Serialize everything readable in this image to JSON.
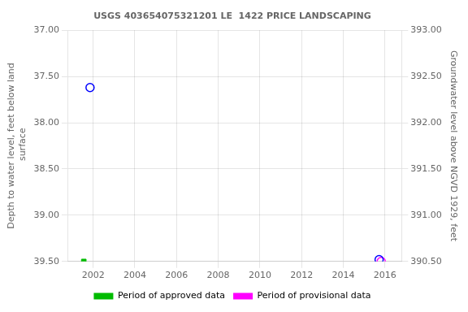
{
  "chart_data": {
    "type": "scatter",
    "title": "USGS 403654075321201 LE  1422 PRICE LANDSCAPING",
    "ylabel": "Depth to water level, feet below land\n surface",
    "y2label": "Groundwater level above NGVD 1929, feet",
    "xlim": [
      2000.8,
      2016.8
    ],
    "xticks": [
      2002,
      2004,
      2006,
      2008,
      2010,
      2012,
      2014,
      2016
    ],
    "ylim": [
      39.5,
      37.0
    ],
    "yticks": [
      {
        "value": 37.0,
        "label": "37.00"
      },
      {
        "value": 37.5,
        "label": "37.50"
      },
      {
        "value": 38.0,
        "label": "38.00"
      },
      {
        "value": 38.5,
        "label": "38.50"
      },
      {
        "value": 39.0,
        "label": "39.00"
      },
      {
        "value": 39.5,
        "label": "39.50"
      }
    ],
    "y2lim": [
      390.5,
      393.0
    ],
    "y2ticks": [
      {
        "value": 390.5,
        "label": "390.50"
      },
      {
        "value": 391.0,
        "label": "391.00"
      },
      {
        "value": 391.5,
        "label": "391.50"
      },
      {
        "value": 392.0,
        "label": "392.00"
      },
      {
        "value": 392.5,
        "label": "392.50"
      },
      {
        "value": 393.0,
        "label": "393.00"
      }
    ],
    "grid": true,
    "legend": "bottom",
    "legend_entries": [
      {
        "name": "Period of approved data",
        "color": "#00bb00"
      },
      {
        "name": "Period of provisional data",
        "color": "#ff00ff"
      }
    ],
    "series": [
      {
        "color": "#00bb00",
        "marker": "square",
        "x": [
          2001.55
        ],
        "values": [
          39.5
        ]
      },
      {
        "color": "#0000ff",
        "marker": "circle-open",
        "x": [
          2001.85
        ],
        "values": [
          37.62
        ]
      },
      {
        "color": "#0000ff",
        "marker": "circle-open",
        "x": [
          2015.72
        ],
        "values": [
          39.48
        ]
      },
      {
        "color": "#ff00ff",
        "marker": "circle-open",
        "x": [
          2015.82
        ],
        "values": [
          39.5
        ]
      }
    ]
  }
}
